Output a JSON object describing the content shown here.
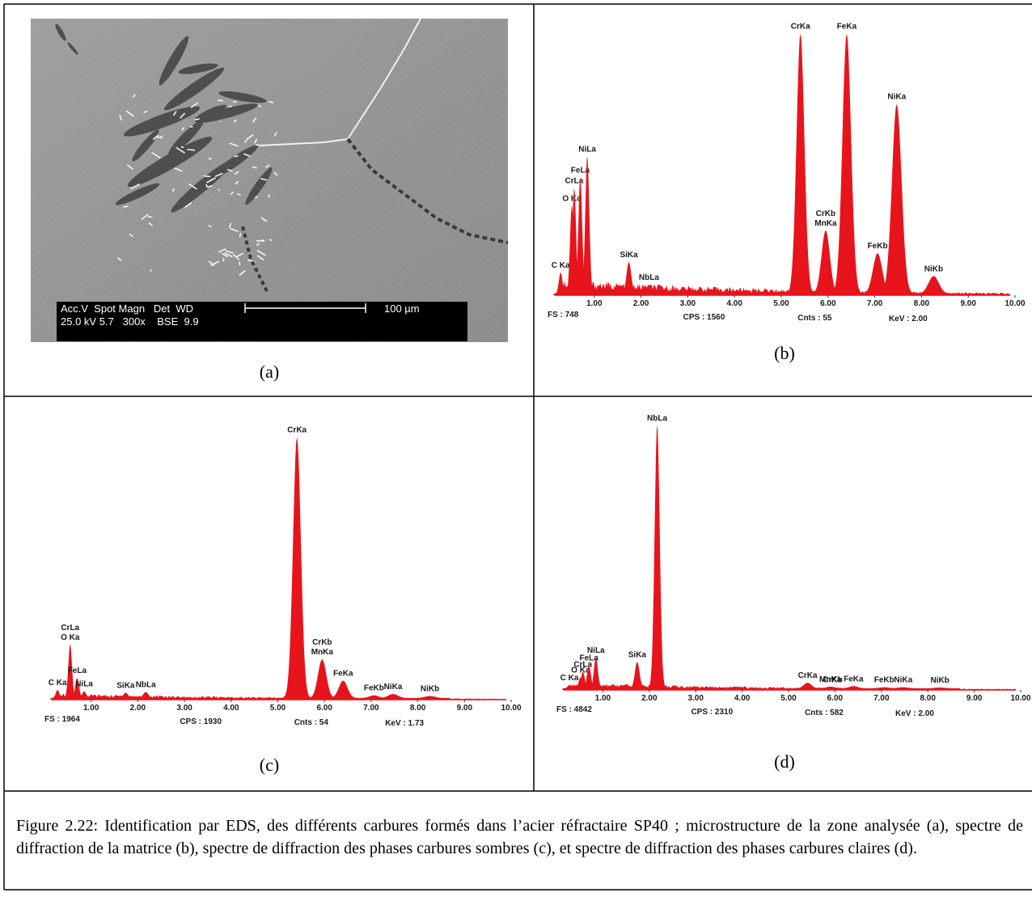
{
  "panels": [
    {
      "label": "(a)",
      "sem": {
        "header": "Acc.V  Spot Magn   Det  WD",
        "values": "25.0 kV 5.7   300x    BSE  9.9",
        "scale": "100 µm"
      }
    },
    {
      "label": "(b)",
      "spectrum": {
        "xlim": [
          0,
          10
        ],
        "xticks": [
          {
            "value": 1,
            "label": "1.00"
          },
          {
            "value": 2,
            "label": "2.00"
          },
          {
            "value": 3,
            "label": "3.00"
          },
          {
            "value": 4,
            "label": "4.00"
          },
          {
            "value": 5,
            "label": "5.00"
          },
          {
            "value": 6,
            "label": "6.00"
          },
          {
            "value": 7,
            "label": "7.00"
          },
          {
            "value": 8,
            "label": "8.00"
          },
          {
            "value": 9,
            "label": "9.00"
          },
          {
            "value": 10,
            "label": "10.00"
          }
        ],
        "full_scale": {
          "value": 748,
          "label": "FS : 748"
        },
        "cps": "CPS : 1560",
        "counts": "Cnts : 55",
        "kev": "KeV : 2.00",
        "color": "#e8141c",
        "peaks": [
          {
            "energy": 0.28,
            "counts": 60,
            "labels": [
              "C Ka"
            ]
          },
          {
            "energy": 0.52,
            "counts": 250,
            "labels": [
              "O Ka"
            ]
          },
          {
            "energy": 0.57,
            "counts": 300,
            "labels": [
              "CrLa"
            ]
          },
          {
            "energy": 0.7,
            "counts": 330,
            "labels": [
              "FeLa"
            ]
          },
          {
            "energy": 0.85,
            "counts": 390,
            "labels": [
              "NiLa"
            ]
          },
          {
            "energy": 1.74,
            "counts": 90,
            "labels": [
              "SiKa"
            ]
          },
          {
            "energy": 2.17,
            "counts": 25,
            "labels": [
              "NbLa"
            ]
          },
          {
            "energy": 5.41,
            "counts": 740,
            "labels": [
              "CrKa"
            ]
          },
          {
            "energy": 5.95,
            "counts": 180,
            "labels": [
              "CrKb",
              "MnKa"
            ]
          },
          {
            "energy": 6.4,
            "counts": 740,
            "labels": [
              "FeKa"
            ]
          },
          {
            "energy": 7.06,
            "counts": 115,
            "labels": [
              "FeKb"
            ]
          },
          {
            "energy": 7.47,
            "counts": 540,
            "labels": [
              "NiKa"
            ]
          },
          {
            "energy": 8.26,
            "counts": 50,
            "labels": [
              "NiKb"
            ]
          }
        ]
      }
    },
    {
      "label": "(c)",
      "spectrum": {
        "xlim": [
          0,
          10
        ],
        "xticks": [
          {
            "value": 1,
            "label": "1.00"
          },
          {
            "value": 2,
            "label": "2.00"
          },
          {
            "value": 3,
            "label": "3.00"
          },
          {
            "value": 4,
            "label": "4.00"
          },
          {
            "value": 5,
            "label": "5.00"
          },
          {
            "value": 6,
            "label": "6.00"
          },
          {
            "value": 7,
            "label": "7.00"
          },
          {
            "value": 8,
            "label": "8.00"
          },
          {
            "value": 9,
            "label": "9.00"
          },
          {
            "value": 10,
            "label": "10.00"
          }
        ],
        "full_scale": {
          "value": 1964,
          "label": "FS : 1964"
        },
        "cps": "CPS : 1930",
        "counts": "Cnts : 54",
        "kev": "KeV : 1.73",
        "color": "#e8141c",
        "peaks": [
          {
            "energy": 0.28,
            "counts": 60,
            "labels": [
              "C Ka"
            ]
          },
          {
            "energy": 0.55,
            "counts": 400,
            "labels": [
              "CrLa",
              "O Ka"
            ]
          },
          {
            "energy": 0.7,
            "counts": 150,
            "labels": [
              "FeLa"
            ]
          },
          {
            "energy": 0.85,
            "counts": 50,
            "labels": [
              "NiLa"
            ]
          },
          {
            "energy": 1.74,
            "counts": 40,
            "labels": [
              "SiKa"
            ]
          },
          {
            "energy": 2.17,
            "counts": 45,
            "labels": [
              "NbLa"
            ]
          },
          {
            "energy": 5.41,
            "counts": 1950,
            "labels": [
              "CrKa"
            ]
          },
          {
            "energy": 5.95,
            "counts": 290,
            "labels": [
              "CrKb",
              "MnKa"
            ]
          },
          {
            "energy": 6.4,
            "counts": 130,
            "labels": [
              "FeKa"
            ]
          },
          {
            "energy": 7.06,
            "counts": 20,
            "labels": [
              "FeKb"
            ]
          },
          {
            "energy": 7.47,
            "counts": 30,
            "labels": [
              "NiKa"
            ]
          },
          {
            "energy": 8.26,
            "counts": 15,
            "labels": [
              "NiKb"
            ]
          }
        ]
      }
    },
    {
      "label": "(d)",
      "spectrum": {
        "xlim": [
          0,
          10
        ],
        "xticks": [
          {
            "value": 1,
            "label": "1.00"
          },
          {
            "value": 2,
            "label": "2.00"
          },
          {
            "value": 3,
            "label": "3.00"
          },
          {
            "value": 4,
            "label": "4.00"
          },
          {
            "value": 5,
            "label": "5.00"
          },
          {
            "value": 6,
            "label": "6.00"
          },
          {
            "value": 7,
            "label": "7.00"
          },
          {
            "value": 8,
            "label": "8.00"
          },
          {
            "value": 9,
            "label": "9.00"
          },
          {
            "value": 10,
            "label": "10.00"
          }
        ],
        "full_scale": {
          "value": 4842,
          "label": "FS : 4842"
        },
        "cps": "CPS : 2310",
        "counts": "Cnts : 582",
        "kev": "KeV : 2.00",
        "color": "#e8141c",
        "peaks": [
          {
            "energy": 0.28,
            "counts": 60,
            "labels": [
              "C Ka"
            ]
          },
          {
            "energy": 0.52,
            "counts": 200,
            "labels": [
              "O Ka"
            ]
          },
          {
            "energy": 0.57,
            "counts": 300,
            "labels": [
              "CrLa"
            ]
          },
          {
            "energy": 0.7,
            "counts": 420,
            "labels": [
              "FeLa"
            ]
          },
          {
            "energy": 0.85,
            "counts": 560,
            "labels": [
              "NiLa"
            ]
          },
          {
            "energy": 1.74,
            "counts": 480,
            "labels": [
              "SiKa"
            ]
          },
          {
            "energy": 2.17,
            "counts": 4800,
            "labels": [
              "NbLa"
            ]
          },
          {
            "energy": 5.41,
            "counts": 100,
            "labels": [
              "CrKa"
            ]
          },
          {
            "energy": 5.9,
            "counts": 30,
            "labels": [
              "MnKa"
            ]
          },
          {
            "energy": 5.95,
            "counts": 20,
            "labels": [
              "CrKb"
            ]
          },
          {
            "energy": 6.4,
            "counts": 40,
            "labels": [
              "FeKa"
            ]
          },
          {
            "energy": 7.06,
            "counts": 20,
            "labels": [
              "FeKb"
            ]
          },
          {
            "energy": 7.47,
            "counts": 20,
            "labels": [
              "NiKa"
            ]
          },
          {
            "energy": 8.26,
            "counts": 15,
            "labels": [
              "NiKb"
            ]
          }
        ]
      }
    }
  ],
  "caption": "Figure 2.22: Identification par EDS, des différents carbures formés dans l’acier réfractaire SP40 ; microstructure de la zone analysée (a), spectre de diffraction de la matrice (b), spectre de diffraction des phases carbures sombres (c), et spectre de diffraction des phases carbures claires (d)."
}
